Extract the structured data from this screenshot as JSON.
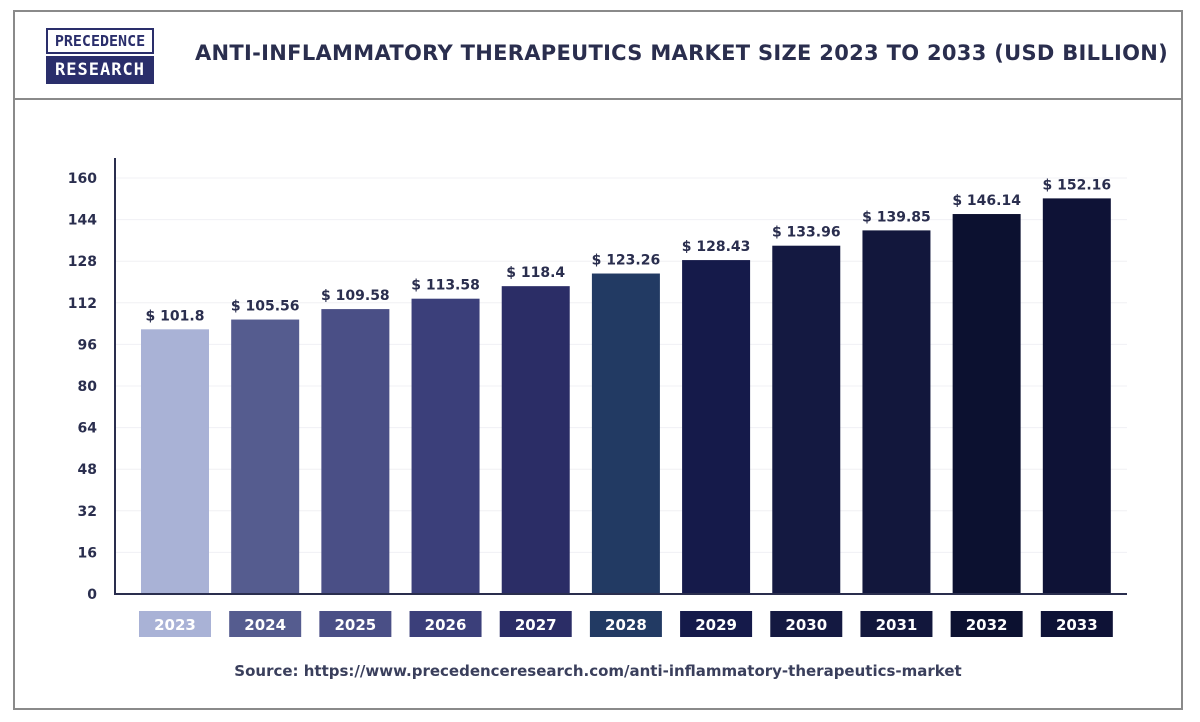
{
  "logo": {
    "line1": "PRECEDENCE",
    "line2": "RESEARCH"
  },
  "title": "ANTI-INFLAMMATORY THERAPEUTICS MARKET SIZE 2023 TO 2033 (USD BILLION)",
  "source": "Source: https://www.precedenceresearch.com/anti-inflammatory-therapeutics-market",
  "colors": {
    "brand": "#2a2e6b",
    "bars": [
      "#a9b2d6",
      "#555c8f",
      "#4a4f86",
      "#3b3f7a",
      "#2b2d66",
      "#223a63",
      "#151a4a",
      "#141941",
      "#12173c",
      "#0c1130",
      "#0e1236"
    ]
  },
  "chart_data": {
    "type": "bar",
    "title": "ANTI-INFLAMMATORY THERAPEUTICS MARKET SIZE 2023 TO 2033 (USD BILLION)",
    "xlabel": "",
    "ylabel": "",
    "categories": [
      "2023",
      "2024",
      "2025",
      "2026",
      "2027",
      "2028",
      "2029",
      "2030",
      "2031",
      "2032",
      "2033"
    ],
    "values": [
      101.8,
      105.56,
      109.58,
      113.58,
      118.4,
      123.26,
      128.43,
      133.96,
      139.85,
      146.14,
      152.16
    ],
    "value_labels": [
      "$ 101.8",
      "$ 105.56",
      "$ 109.58",
      "$ 113.58",
      "$ 118.4",
      "$ 123.26",
      "$ 128.43",
      "$ 133.96",
      "$ 139.85",
      "$ 146.14",
      "$ 152.16"
    ],
    "ylim": [
      0,
      160
    ],
    "yticks": [
      0,
      16,
      32,
      48,
      64,
      80,
      96,
      112,
      128,
      144,
      160
    ],
    "grid": true,
    "legend": "none"
  }
}
